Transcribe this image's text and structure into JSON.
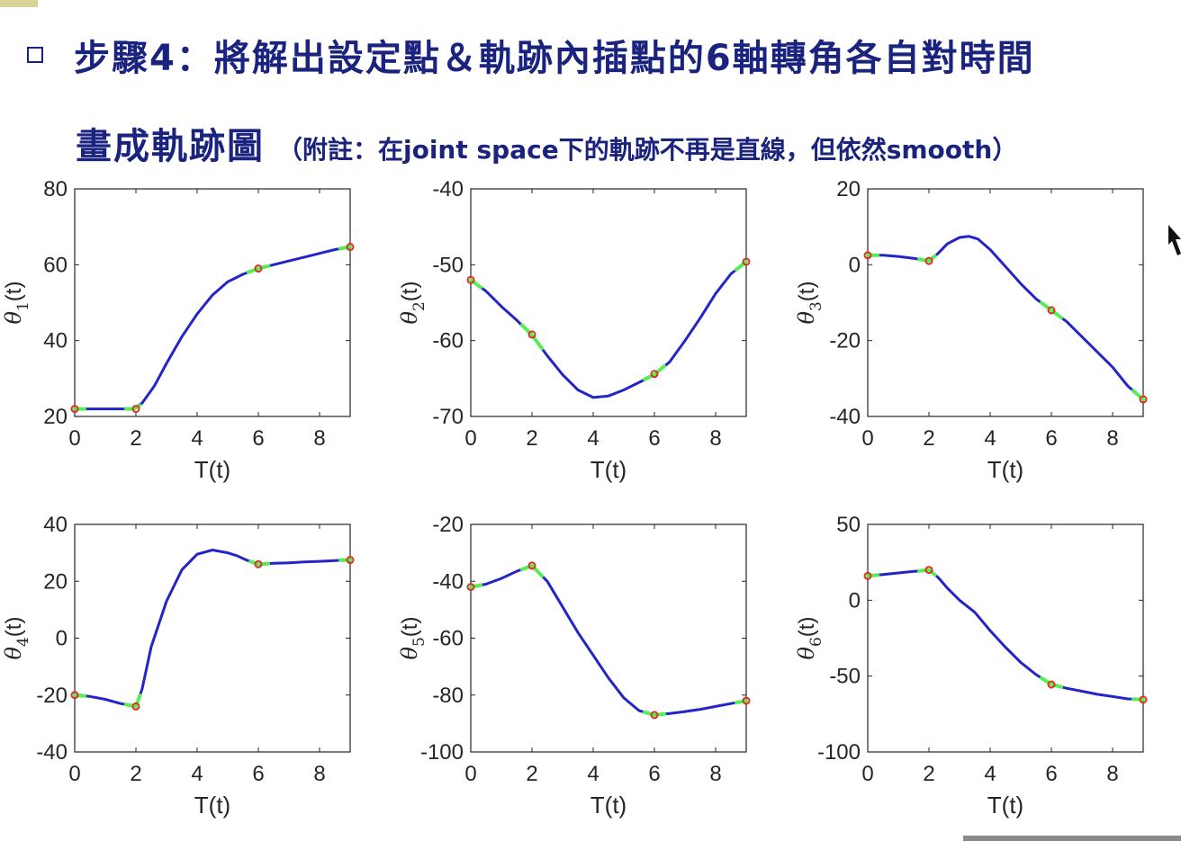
{
  "slide": {
    "title_line1": "步驟4：將解出設定點＆軌跡內插點的6軸轉角各自對時間",
    "title_line2": "畫成軌跡圖",
    "note": "（附註：在joint space下的軌跡不再是直線，但依然smooth）"
  },
  "colors": {
    "title": "#1a237e",
    "curve": "#2424c8",
    "blend": "#55ee55",
    "knot": "#dd3322",
    "axis": "#262626"
  },
  "chart_data": [
    {
      "type": "line",
      "ylabel_symbol": "θ",
      "ylabel_sub": "1",
      "xlabel": "T(t)",
      "xlim": [
        0,
        9
      ],
      "ylim": [
        20,
        80
      ],
      "xticks": [
        "0",
        "2",
        "4",
        "6",
        "8"
      ],
      "yticks": [
        "20",
        "40",
        "60",
        "80"
      ],
      "series": [
        {
          "x": [
            0,
            0.5,
            1,
            1.5,
            1.9,
            2.2,
            2.6,
            3,
            3.5,
            4,
            4.5,
            5,
            5.5,
            6,
            6.5,
            7,
            7.5,
            8,
            8.5,
            9
          ],
          "y": [
            22,
            22,
            22,
            22,
            22,
            23.5,
            28,
            34,
            41,
            47,
            52,
            55.5,
            57.5,
            59,
            60,
            61,
            62,
            63,
            64,
            64.7
          ]
        }
      ],
      "knots": {
        "x": [
          0,
          2,
          6,
          9
        ],
        "y": [
          22,
          22,
          59,
          64.7
        ]
      }
    },
    {
      "type": "line",
      "ylabel_symbol": "θ",
      "ylabel_sub": "2",
      "xlabel": "T(t)",
      "xlim": [
        0,
        9
      ],
      "ylim": [
        -70,
        -40
      ],
      "xticks": [
        "0",
        "2",
        "4",
        "6",
        "8"
      ],
      "yticks": [
        "-70",
        "-60",
        "-50",
        "-40"
      ],
      "series": [
        {
          "x": [
            0,
            0.5,
            1,
            1.5,
            2,
            2.5,
            3,
            3.5,
            4,
            4.5,
            5,
            5.5,
            6,
            6.5,
            7,
            7.5,
            8,
            8.5,
            9
          ],
          "y": [
            -52,
            -53.5,
            -55.5,
            -57.3,
            -59.3,
            -62,
            -64.5,
            -66.5,
            -67.5,
            -67.3,
            -66.5,
            -65.5,
            -64.5,
            -62.8,
            -60,
            -57,
            -53.8,
            -51.2,
            -49.6
          ]
        }
      ],
      "knots": {
        "x": [
          0,
          2,
          6,
          9
        ],
        "y": [
          -52,
          -59.2,
          -64.4,
          -49.6
        ]
      }
    },
    {
      "type": "line",
      "ylabel_symbol": "θ",
      "ylabel_sub": "3",
      "xlabel": "T(t)",
      "xlim": [
        0,
        9
      ],
      "ylim": [
        -40,
        20
      ],
      "xticks": [
        "0",
        "2",
        "4",
        "6",
        "8"
      ],
      "yticks": [
        "-40",
        "-20",
        "0",
        "20"
      ],
      "series": [
        {
          "x": [
            0,
            0.5,
            1,
            1.5,
            2,
            2.3,
            2.6,
            3,
            3.3,
            3.6,
            4,
            4.5,
            5,
            5.5,
            6,
            6.5,
            7,
            7.5,
            8,
            8.5,
            9
          ],
          "y": [
            2.5,
            2.5,
            2.2,
            1.7,
            1,
            3,
            5.5,
            7.2,
            7.5,
            6.8,
            4,
            -0.5,
            -5,
            -9,
            -12,
            -15,
            -19,
            -23,
            -27,
            -32,
            -35.5
          ]
        }
      ],
      "knots": {
        "x": [
          0,
          2,
          6,
          9
        ],
        "y": [
          2.5,
          1,
          -12,
          -35.5
        ]
      }
    },
    {
      "type": "line",
      "ylabel_symbol": "θ",
      "ylabel_sub": "4",
      "xlabel": "T(t)",
      "xlim": [
        0,
        9
      ],
      "ylim": [
        -40,
        40
      ],
      "xticks": [
        "0",
        "2",
        "4",
        "6",
        "8"
      ],
      "yticks": [
        "-40",
        "-20",
        "0",
        "20",
        "40"
      ],
      "series": [
        {
          "x": [
            0,
            0.5,
            1,
            1.5,
            2,
            2.2,
            2.5,
            3,
            3.5,
            4,
            4.5,
            5,
            5.3,
            5.6,
            6,
            6.5,
            7,
            7.5,
            8,
            8.5,
            9
          ],
          "y": [
            -20,
            -20.5,
            -21.5,
            -23,
            -24,
            -18,
            -3,
            13,
            24,
            29.5,
            31,
            30,
            29,
            27.5,
            26,
            26.3,
            26.5,
            26.8,
            27,
            27.3,
            27.5
          ]
        }
      ],
      "knots": {
        "x": [
          0,
          2,
          6,
          9
        ],
        "y": [
          -20,
          -24,
          26,
          27.5
        ]
      }
    },
    {
      "type": "line",
      "ylabel_symbol": "θ",
      "ylabel_sub": "5",
      "xlabel": "T(t)",
      "xlim": [
        0,
        9
      ],
      "ylim": [
        -100,
        -20
      ],
      "xticks": [
        "0",
        "2",
        "4",
        "6",
        "8"
      ],
      "yticks": [
        "-100",
        "-80",
        "-60",
        "-40",
        "-20"
      ],
      "series": [
        {
          "x": [
            0,
            0.5,
            1,
            1.5,
            2,
            2.5,
            3,
            3.5,
            4,
            4.5,
            5,
            5.5,
            6,
            6.5,
            7,
            7.5,
            8,
            8.5,
            9
          ],
          "y": [
            -42,
            -41,
            -39,
            -36.5,
            -34.5,
            -40,
            -49,
            -58,
            -66,
            -74,
            -81,
            -85.5,
            -87,
            -86.5,
            -85.8,
            -85,
            -84,
            -83,
            -82
          ]
        }
      ],
      "knots": {
        "x": [
          0,
          2,
          6,
          9
        ],
        "y": [
          -42,
          -34.5,
          -87,
          -82
        ]
      }
    },
    {
      "type": "line",
      "ylabel_symbol": "θ",
      "ylabel_sub": "6",
      "xlabel": "T(t)",
      "xlim": [
        0,
        9
      ],
      "ylim": [
        -100,
        50
      ],
      "xticks": [
        "0",
        "2",
        "4",
        "6",
        "8"
      ],
      "yticks": [
        "-100",
        "-50",
        "0",
        "50"
      ],
      "series": [
        {
          "x": [
            0,
            0.5,
            1,
            1.5,
            2,
            2.3,
            2.6,
            3,
            3.5,
            4,
            4.5,
            5,
            5.5,
            6,
            6.5,
            7,
            7.5,
            8,
            8.5,
            9
          ],
          "y": [
            16,
            17,
            18,
            19,
            20,
            15,
            8,
            0,
            -8,
            -20,
            -31,
            -41,
            -49,
            -55.5,
            -58,
            -60,
            -62,
            -63.5,
            -65,
            -65.5
          ]
        }
      ],
      "knots": {
        "x": [
          0,
          2,
          6,
          9
        ],
        "y": [
          16,
          20,
          -55.5,
          -65.5
        ]
      }
    }
  ]
}
